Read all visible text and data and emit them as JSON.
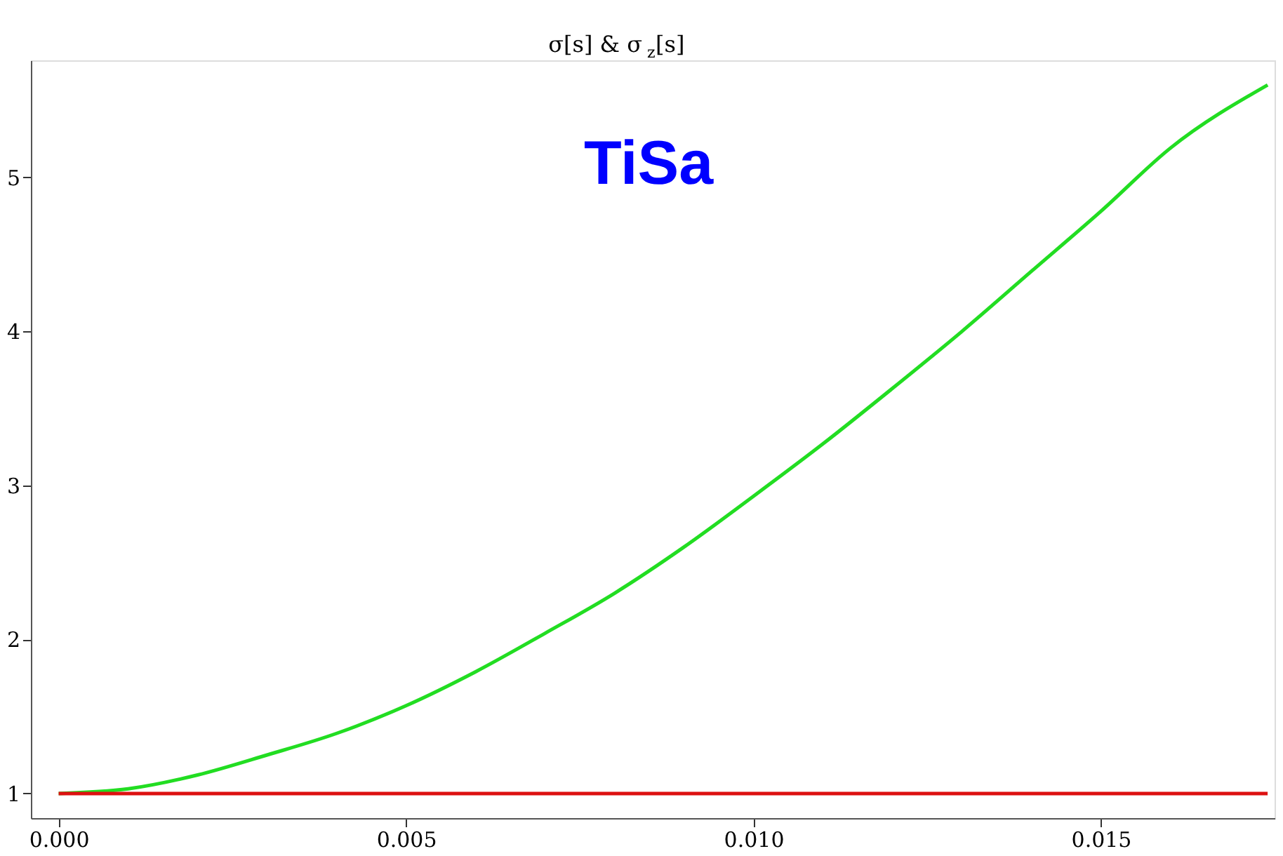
{
  "chart_data": {
    "type": "line",
    "title": "σ[s] & σ$_{z}$[s]",
    "x": [
      0,
      0.001,
      0.002,
      0.003,
      0.004,
      0.005,
      0.006,
      0.007,
      0.008,
      0.009,
      0.01,
      0.011,
      0.012,
      0.013,
      0.014,
      0.015,
      0.016,
      0.0174
    ],
    "series": [
      {
        "color": "#22dd22",
        "values": [
          1.0,
          1.03,
          1.12,
          1.25,
          1.39,
          1.57,
          1.79,
          2.04,
          2.3,
          2.6,
          2.93,
          3.27,
          3.63,
          4.0,
          4.39,
          4.78,
          5.19,
          5.6
        ]
      },
      {
        "color": "#dd1111",
        "values": [
          1.0,
          1.0,
          1.0,
          1.0,
          1.0,
          1.0,
          1.0,
          1.0,
          1.0,
          1.0,
          1.0,
          1.0,
          1.0,
          1.0,
          1.0,
          1.0,
          1.0,
          1.0
        ]
      }
    ],
    "xlim": [
      -0.0004,
      0.0175
    ],
    "xticks": [
      {
        "value": 0,
        "label": "0.000"
      },
      {
        "value": 0.005,
        "label": "0.005"
      },
      {
        "value": 0.01,
        "label": "0.010"
      },
      {
        "value": 0.015,
        "label": "0.015"
      }
    ],
    "ylim": [
      0.84,
      5.76
    ],
    "yticks": [
      1,
      2,
      3,
      4,
      5
    ],
    "annotations": [
      "TiSa"
    ],
    "grid": false,
    "legend": false,
    "marker": "none",
    "line_style": "solid"
  }
}
